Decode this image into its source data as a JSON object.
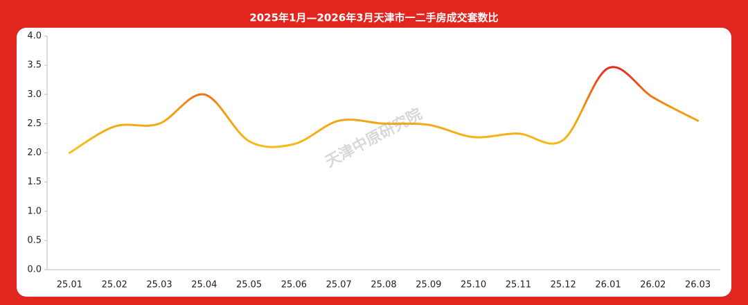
{
  "chart_data": {
    "type": "line",
    "title": "2025年1月—2026年3月天津市一二手房成交套数比",
    "watermark": "天津中原研究院",
    "categories": [
      "25.01",
      "25.02",
      "25.03",
      "25.04",
      "25.05",
      "25.06",
      "25.07",
      "25.08",
      "25.09",
      "25.10",
      "25.11",
      "25.12",
      "26.01",
      "26.02",
      "26.03"
    ],
    "values": [
      2.0,
      2.45,
      2.5,
      3.0,
      2.2,
      2.15,
      2.55,
      2.5,
      2.48,
      2.27,
      2.33,
      2.22,
      3.45,
      2.95,
      2.55
    ],
    "ylim": [
      0,
      4
    ],
    "yticks": [
      {
        "value": 0,
        "label": "0.0"
      },
      {
        "value": 0.5,
        "label": "0.5"
      },
      {
        "value": 1,
        "label": "1.0"
      },
      {
        "value": 1.5,
        "label": "1.5"
      },
      {
        "value": 2,
        "label": "2.0"
      },
      {
        "value": 2.5,
        "label": "2.5"
      },
      {
        "value": 3,
        "label": "3.0"
      },
      {
        "value": 3.5,
        "label": "3.5"
      },
      {
        "value": 4,
        "label": "4.0"
      }
    ],
    "grid": false,
    "gradient": [
      "#f6c21a",
      "#f29a12",
      "#e3261d"
    ]
  }
}
